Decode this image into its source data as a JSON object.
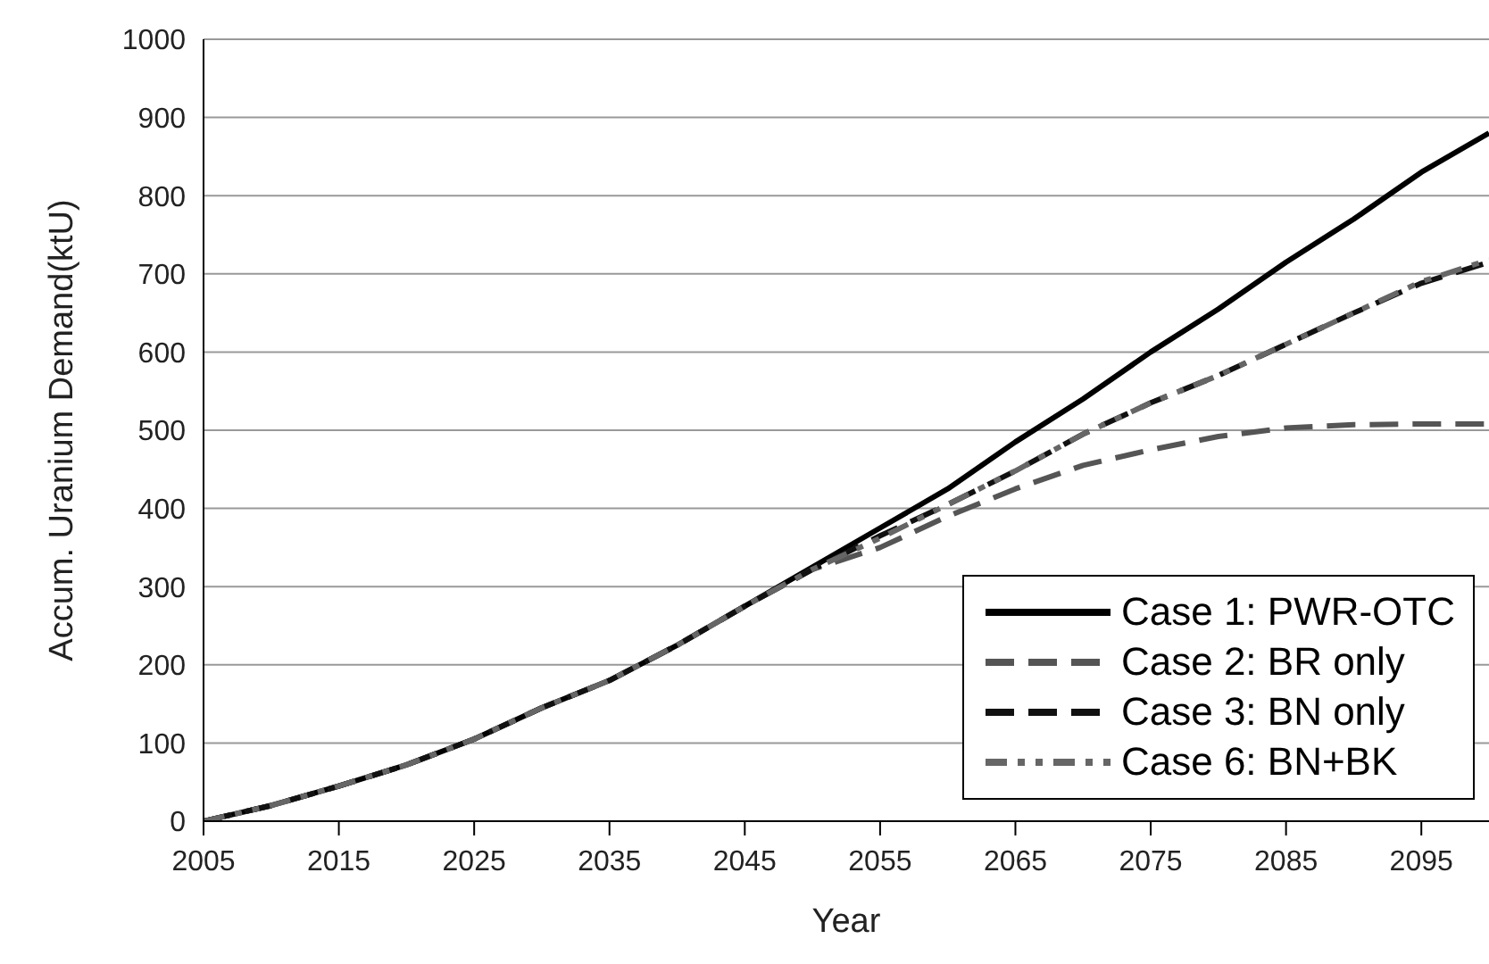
{
  "chart_data": {
    "type": "line",
    "xlabel": "Year",
    "ylabel": "Accum. Uranium Demand(ktU)",
    "x": [
      2005,
      2010,
      2015,
      2020,
      2025,
      2030,
      2035,
      2040,
      2045,
      2050,
      2055,
      2060,
      2065,
      2070,
      2075,
      2080,
      2085,
      2090,
      2095,
      2100
    ],
    "series": [
      {
        "name": "Case 1: PWR-OTC",
        "color": "#000000",
        "line_style": "solid",
        "values": [
          0,
          20,
          45,
          72,
          105,
          145,
          180,
          225,
          275,
          325,
          375,
          425,
          485,
          540,
          600,
          655,
          715,
          770,
          830,
          880
        ]
      },
      {
        "name": "Case 2: BR only",
        "color": "#555555",
        "line_style": "dashed",
        "values": [
          0,
          20,
          45,
          72,
          105,
          145,
          180,
          225,
          275,
          322,
          350,
          390,
          425,
          455,
          475,
          492,
          503,
          507,
          508,
          508
        ]
      },
      {
        "name": "Case 3: BN only",
        "color": "#111111",
        "line_style": "dashed",
        "values": [
          0,
          20,
          45,
          72,
          105,
          145,
          180,
          225,
          275,
          322,
          365,
          405,
          448,
          495,
          535,
          570,
          610,
          650,
          688,
          715
        ]
      },
      {
        "name": "Case 6: BN+BK",
        "color": "#666666",
        "line_style": "dotted",
        "values": [
          0,
          20,
          45,
          72,
          105,
          145,
          180,
          225,
          275,
          322,
          362,
          405,
          448,
          495,
          535,
          570,
          610,
          650,
          690,
          718
        ]
      }
    ],
    "xlim": [
      2005,
      2100
    ],
    "xticks": [
      2005,
      2015,
      2025,
      2035,
      2045,
      2055,
      2065,
      2075,
      2085,
      2095
    ],
    "ylim": [
      0,
      1000
    ],
    "yticks": [
      0,
      100,
      200,
      300,
      400,
      500,
      600,
      700,
      800,
      900,
      1000
    ],
    "grid": "y",
    "legend": "bottom right",
    "marker": "none"
  }
}
